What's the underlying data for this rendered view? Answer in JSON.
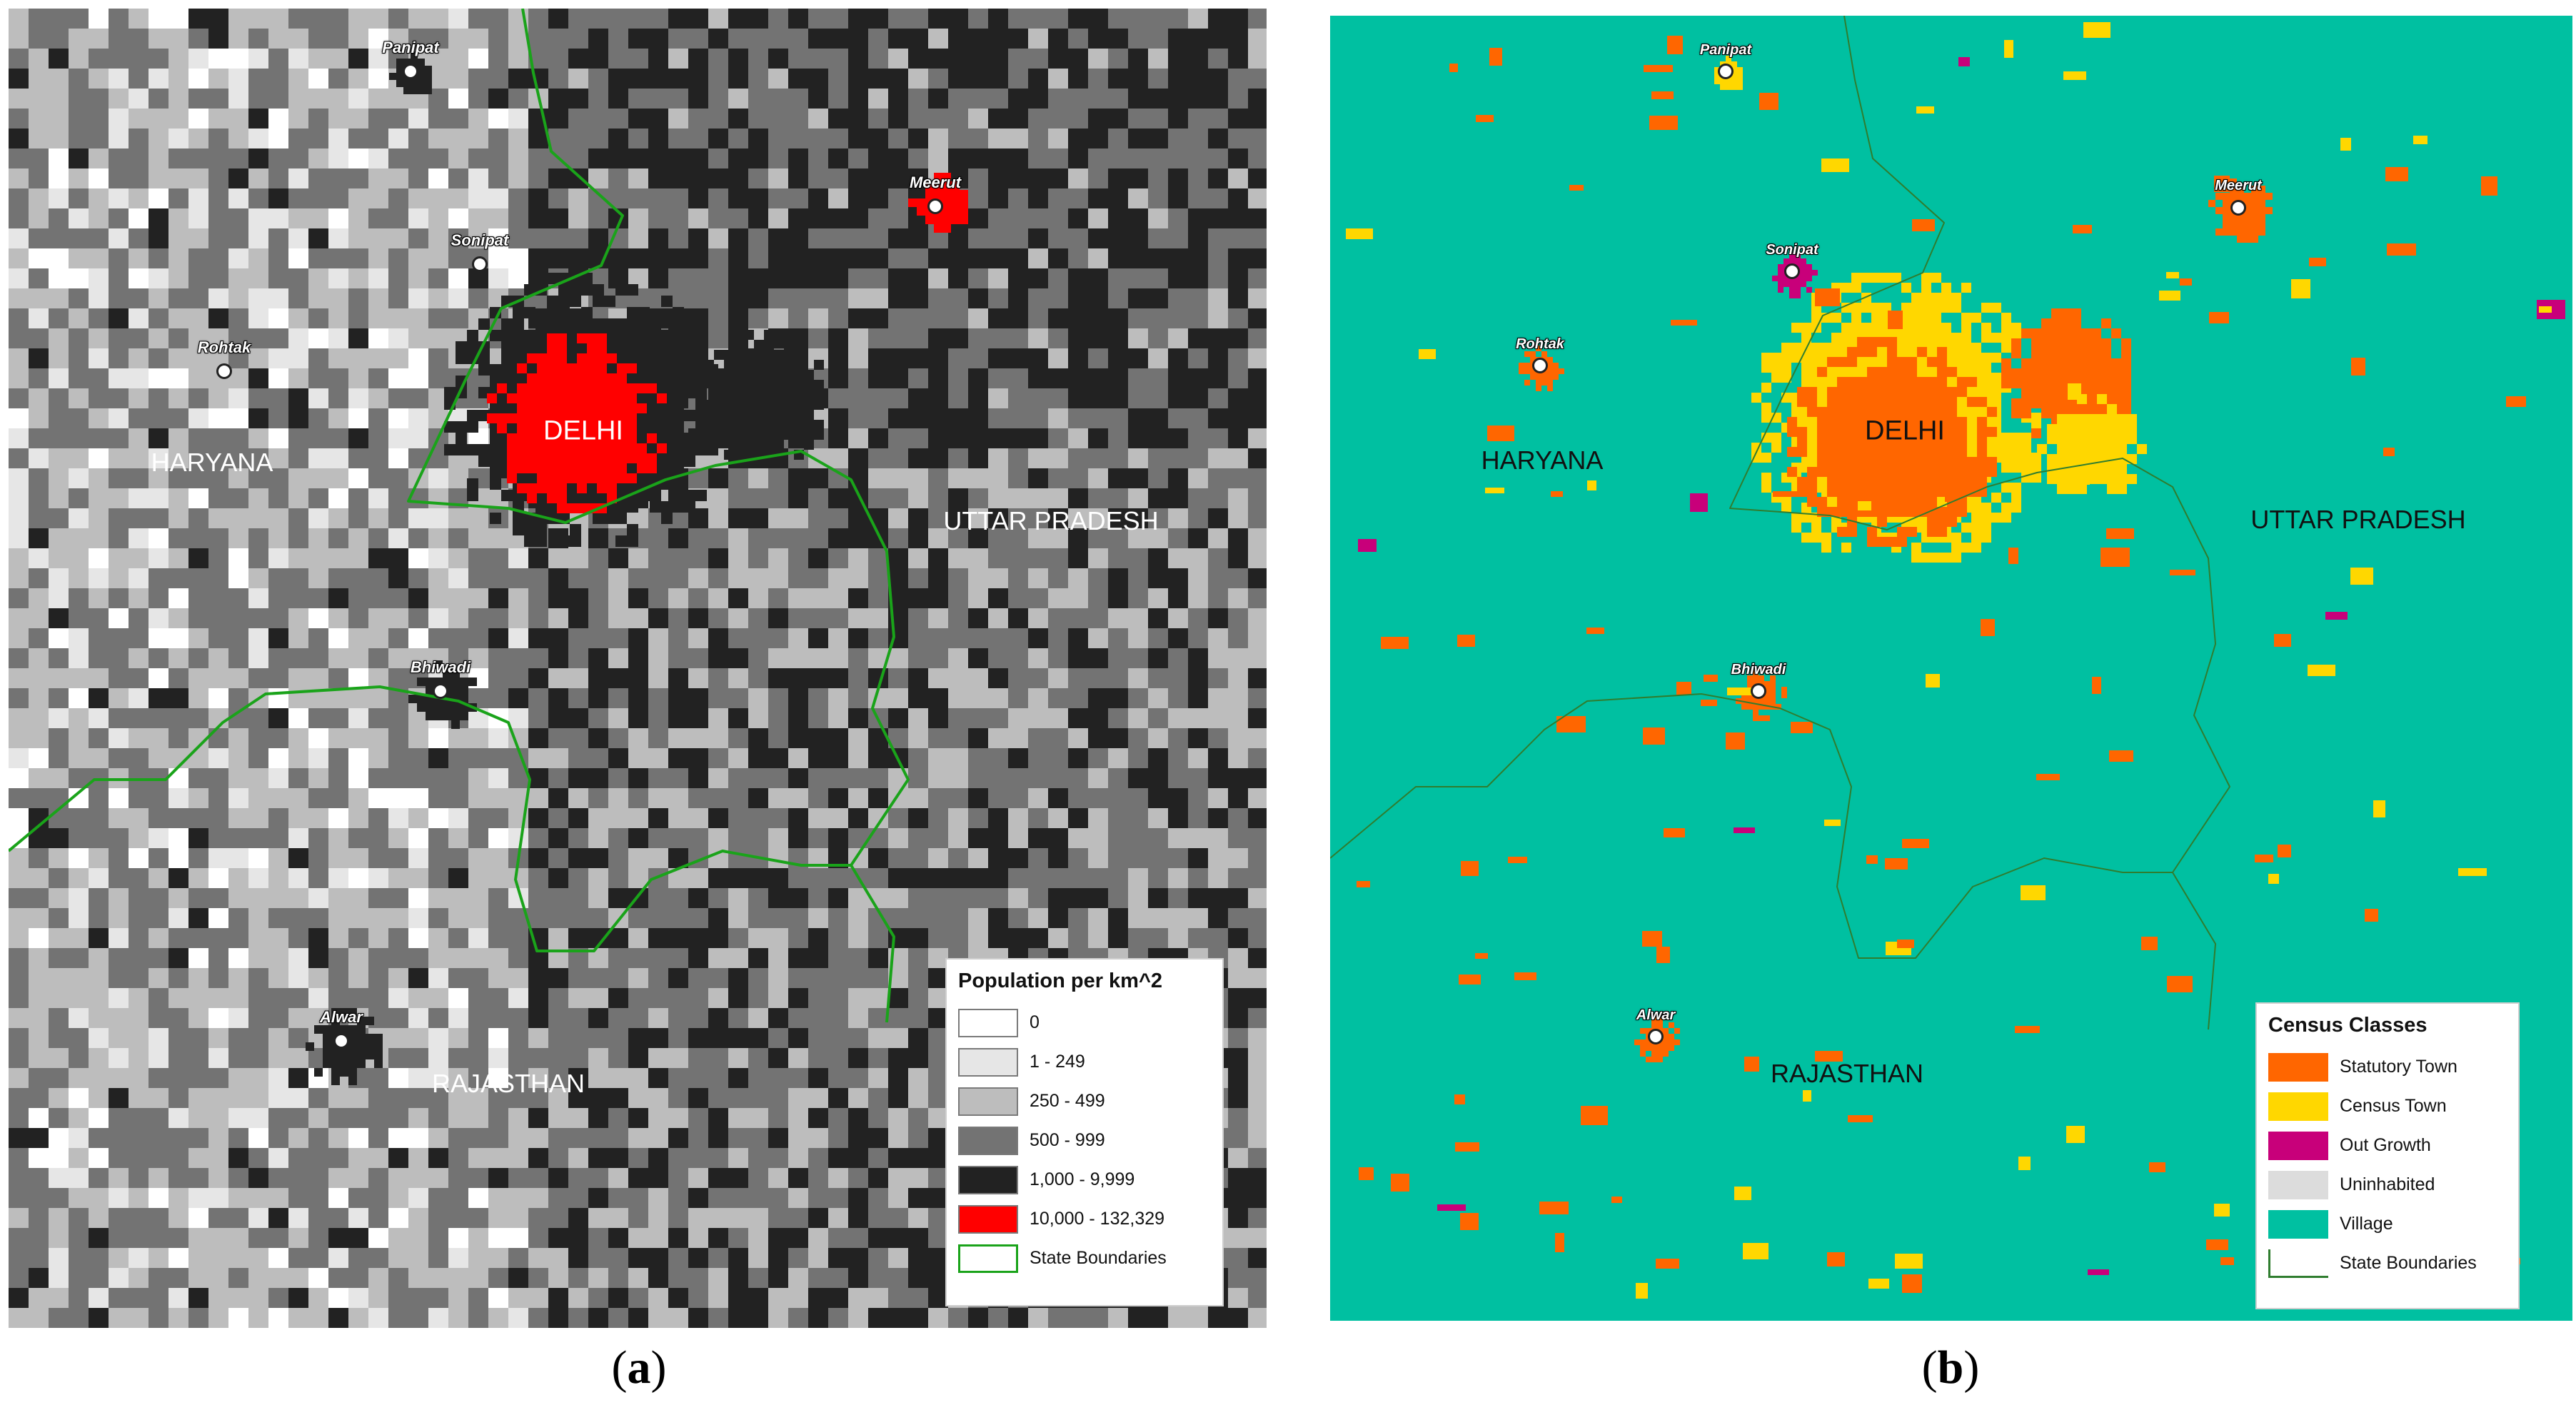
{
  "panel_a": {
    "legend": {
      "title": "Population per km^2",
      "items": [
        {
          "label": "0",
          "color": "#ffffff"
        },
        {
          "label": "1 - 249",
          "color": "#e6e6e6"
        },
        {
          "label": "250 - 499",
          "color": "#bdbdbd"
        },
        {
          "label": "500 - 999",
          "color": "#737373"
        },
        {
          "label": "1,000 - 9,999",
          "color": "#222222"
        },
        {
          "label": "10,000 - 132,329",
          "color": "#ff0000"
        },
        {
          "label": "State Boundaries",
          "color": "#1aa31a"
        }
      ]
    },
    "cities": [
      "Panipat",
      "Meerut",
      "Sonipat",
      "Rohtak",
      "Bhiwadi",
      "Alwar"
    ],
    "regions": {
      "delhi": "DELHI",
      "haryana": "HARYANA",
      "uttar_pradesh": "UTTAR PRADESH",
      "rajasthan": "RAJASTHAN"
    },
    "caption_letter": "a"
  },
  "panel_b": {
    "legend": {
      "title": "Census Classes",
      "items": [
        {
          "label": "Statutory Town",
          "color": "#ff6600"
        },
        {
          "label": "Census Town",
          "color": "#ffd700"
        },
        {
          "label": "Out Growth",
          "color": "#c8007a"
        },
        {
          "label": "Uninhabited",
          "color": "#dcdcdc"
        },
        {
          "label": "Village",
          "color": "#00c0a1"
        },
        {
          "label": "State Boundaries",
          "color": "#2f7d2f"
        }
      ]
    },
    "cities": [
      "Panipat",
      "Meerut",
      "Sonipat",
      "Rohtak",
      "Bhiwadi",
      "Alwar"
    ],
    "regions": {
      "delhi": "DELHI",
      "haryana": "HARYANA",
      "uttar_pradesh": "UTTAR PRADESH",
      "rajasthan": "RAJASTHAN"
    },
    "caption_letter": "b"
  }
}
